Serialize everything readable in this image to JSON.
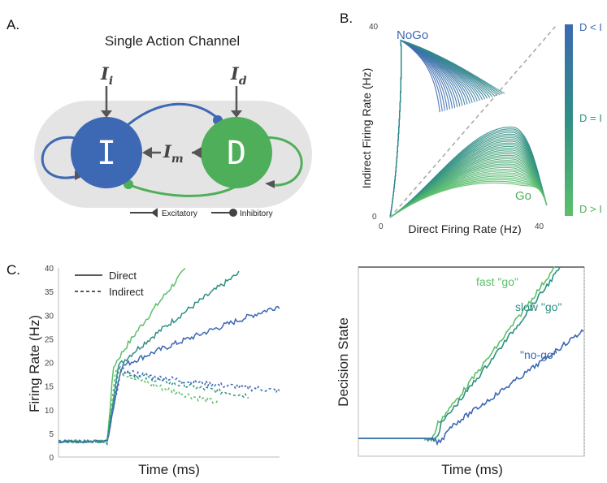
{
  "panel_a": {
    "letter": "A.",
    "title": "Single Action Channel",
    "node_i": "I",
    "node_d": "D",
    "input_i": {
      "base": "I",
      "sub": "i"
    },
    "input_d": {
      "base": "I",
      "sub": "d"
    },
    "input_m": {
      "base": "I",
      "sub": "m"
    },
    "legend_excitatory": "Excitatory",
    "legend_inhibitory": "Inhibitory"
  },
  "colors": {
    "blue": "#3d68b3",
    "teal": "#2f8f84",
    "green": "#4fae5a",
    "light_green": "#5cc06a",
    "grey_box": "#e4e4e4",
    "arrow_grey": "#555555"
  },
  "chart_data": [
    {
      "id": "B",
      "letter": "B.",
      "type": "line",
      "xlabel": "Direct Firing Rate (Hz)",
      "ylabel": "Indirect Firing Rate (Hz)",
      "xlim": [
        0,
        40
      ],
      "ylim": [
        0,
        40
      ],
      "x_ticks": [
        "0",
        "40"
      ],
      "y_ticks": [
        "0",
        "40"
      ],
      "annotations": {
        "nogo": "NoGo",
        "go": "Go"
      },
      "colorbar_labels": [
        "D < I",
        "D = I",
        "D > I"
      ],
      "diagonal": "dashed identity line",
      "trajectory_count": 60
    },
    {
      "id": "C-left",
      "letter": "C.",
      "type": "line",
      "xlabel": "Time (ms)",
      "ylabel": "Firing Rate (Hz)",
      "ylim": [
        0,
        40
      ],
      "y_ticks": [
        0,
        5,
        10,
        15,
        20,
        25,
        30,
        35,
        40
      ],
      "legend": [
        "Direct",
        "Indirect"
      ],
      "series": [
        {
          "style": "solid",
          "color": "light_green",
          "end": 40,
          "end_x": 0.58
        },
        {
          "style": "solid",
          "color": "teal",
          "end": 39,
          "end_x": 0.82
        },
        {
          "style": "solid",
          "color": "blue",
          "end": 32,
          "end_x": 1.0
        },
        {
          "style": "dashed",
          "color": "light_green",
          "end": 11.5,
          "end_x": 0.72
        },
        {
          "style": "dashed",
          "color": "teal",
          "end": 13,
          "end_x": 0.86
        },
        {
          "style": "dashed",
          "color": "blue",
          "end": 14,
          "end_x": 1.0
        }
      ],
      "baseline": 3.3,
      "onset_fraction": 0.22
    },
    {
      "id": "C-right",
      "type": "line",
      "xlabel": "Time (ms)",
      "ylabel": "Decision State",
      "labels": [
        "fast \"go\"",
        "slow \"go\"",
        "\"no-go\""
      ],
      "series": [
        {
          "color": "light_green",
          "label_index": 0
        },
        {
          "color": "teal",
          "label_index": 1
        },
        {
          "color": "blue",
          "label_index": 2
        }
      ]
    }
  ]
}
